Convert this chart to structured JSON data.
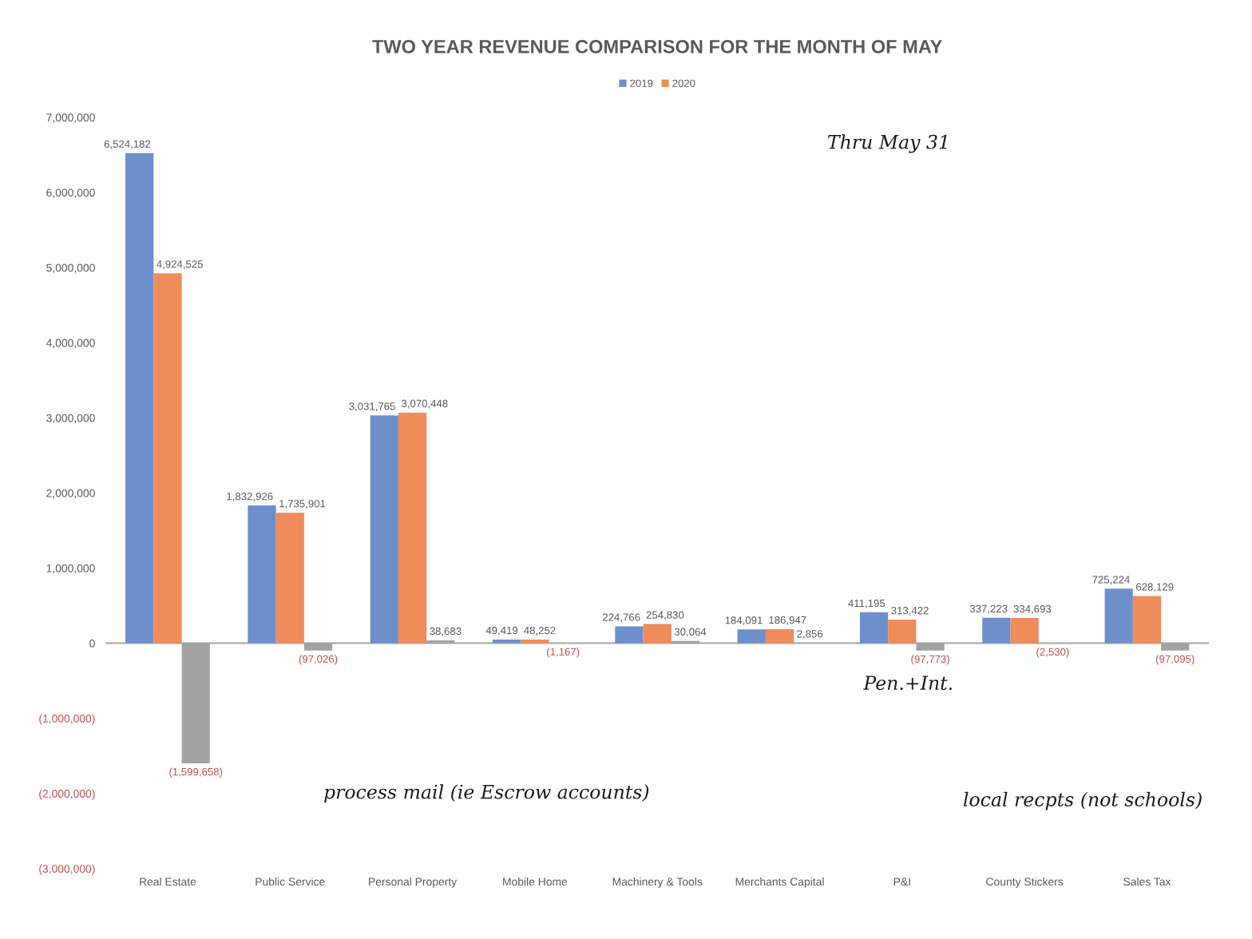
{
  "chart_data": {
    "type": "bar",
    "title": "TWO YEAR REVENUE COMPARISON FOR THE MONTH OF MAY",
    "categories": [
      "Real Estate",
      "Public Service",
      "Personal Property",
      "Mobile Home",
      "Machinery & Tools",
      "Merchants Capital",
      "P&I",
      "County Stickers",
      "Sales Tax"
    ],
    "series": [
      {
        "name": "2019",
        "color": "#6d8fcc",
        "values": [
          6524182,
          1832926,
          3031765,
          49419,
          224766,
          184091,
          411195,
          337223,
          725224
        ],
        "value_labels": [
          "6,524,182",
          "1,832,926",
          "3,031,765",
          "49,419",
          "224,766",
          "184,091",
          "411,195",
          "337,223",
          "725,224"
        ]
      },
      {
        "name": "2020",
        "color": "#ef8c5a",
        "values": [
          4924525,
          1735901,
          3070448,
          48252,
          254830,
          186947,
          313422,
          334693,
          628129
        ],
        "value_labels": [
          "4,924,525",
          "1,735,901",
          "3,070,448",
          "48,252",
          "254,830",
          "186,947",
          "313,422",
          "334,693",
          "628,129"
        ]
      },
      {
        "color": "#a3a3a3",
        "values": [
          -1599658,
          -97026,
          38683,
          -1167,
          30064,
          2856,
          -97773,
          -2530,
          -97095
        ],
        "value_labels": [
          "(1,599,658)",
          "(97,026)",
          "38,683",
          "(1,167)",
          "30,064",
          "2,856",
          "(97,773)",
          "(2,530)",
          "(97,095)"
        ]
      }
    ],
    "ylim": [
      -3000000,
      7000000
    ],
    "yticks": [
      {
        "value": -3000000,
        "label": "(3,000,000)"
      },
      {
        "value": -2000000,
        "label": "(2,000,000)"
      },
      {
        "value": -1000000,
        "label": "(1,000,000)"
      },
      0,
      {
        "value": 1000000,
        "label": "1,000,000"
      },
      {
        "value": 2000000,
        "label": "2,000,000"
      },
      {
        "value": 3000000,
        "label": "3,000,000"
      },
      {
        "value": 4000000,
        "label": "4,000,000"
      },
      {
        "value": 5000000,
        "label": "5,000,000"
      },
      {
        "value": 6000000,
        "label": "6,000,000"
      },
      {
        "value": 7000000,
        "label": "7,000,000"
      }
    ],
    "legend": "top",
    "annotations": [
      "Thru May 31",
      "Pen.+Int.",
      "process mail (ie Escrow accounts)",
      "local recpts (not schools)"
    ]
  }
}
